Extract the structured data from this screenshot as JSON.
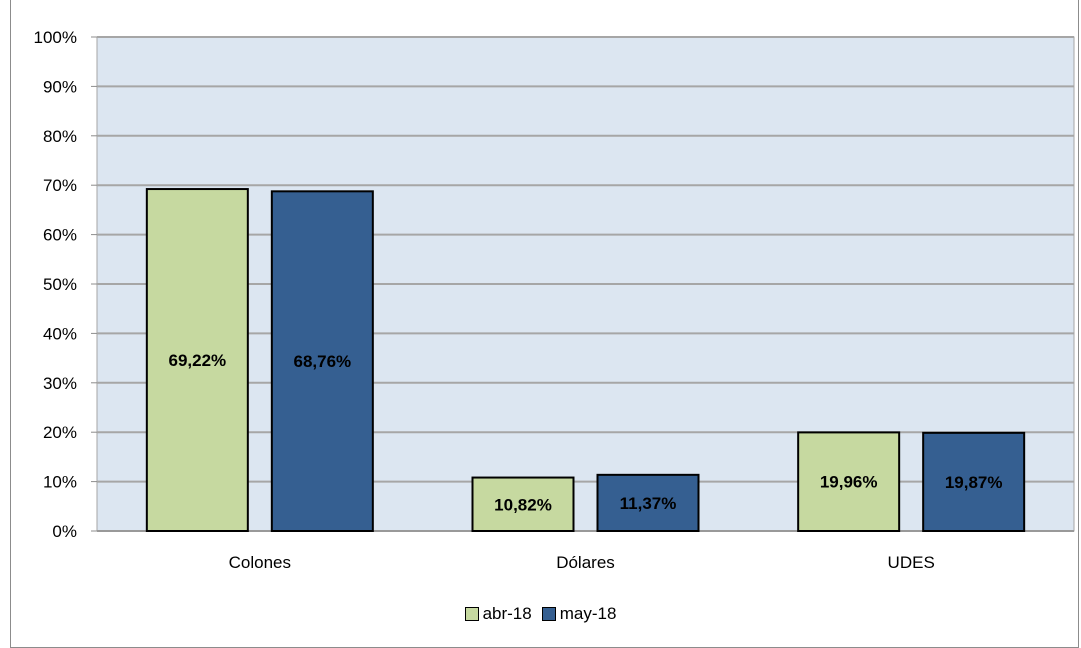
{
  "chart_data": {
    "type": "bar",
    "title": "",
    "categories": [
      "Colones",
      "Dólares",
      "UDES"
    ],
    "series": [
      {
        "name": "abr-18",
        "color": "#c6d9a0",
        "values": [
          69.22,
          10.82,
          19.96
        ],
        "labels": [
          "69,22%",
          "10,82%",
          "19,96%"
        ]
      },
      {
        "name": "may-18",
        "color": "#355f91",
        "values": [
          68.76,
          11.37,
          19.87
        ],
        "labels": [
          "68,76%",
          "11,37%",
          "19,87%"
        ]
      }
    ],
    "ylim": [
      0,
      100
    ],
    "y_ticks": [
      "0%",
      "10%",
      "20%",
      "30%",
      "40%",
      "50%",
      "60%",
      "70%",
      "80%",
      "90%",
      "100%"
    ],
    "grid": true,
    "legend_position": "bottom",
    "plot_background": "#dce6f1",
    "grid_color": "#a6a6a6"
  }
}
